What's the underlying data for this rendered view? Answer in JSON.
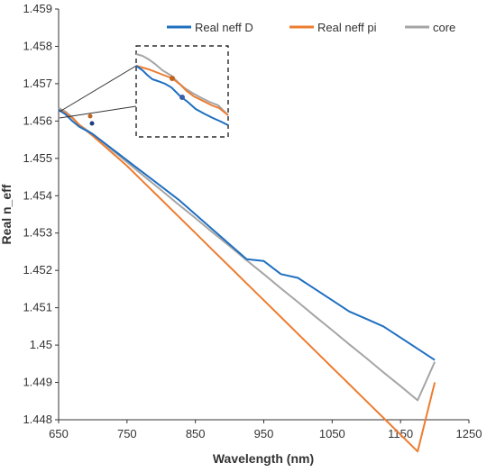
{
  "chart_data": {
    "type": "line",
    "xlabel": "Wavelength (nm)",
    "ylabel": "Real n_eff",
    "xlim": [
      650,
      1250
    ],
    "ylim": [
      1.448,
      1.459
    ],
    "x_ticks": [
      "650",
      "750",
      "850",
      "950",
      "1050",
      "1150",
      "1250"
    ],
    "y_ticks": [
      "1.448",
      "1.449",
      "1.45",
      "1.451",
      "1.452",
      "1.453",
      "1.454",
      "1.455",
      "1.456",
      "1.457",
      "1.458",
      "1.459"
    ],
    "grid": false,
    "legend_position": "top-right",
    "series": [
      {
        "name": "Real neff D",
        "color": "#1f6fc0",
        "x": [
          650,
          660,
          670,
          680,
          700,
          725,
          750,
          775,
          800,
          825,
          850,
          875,
          900,
          925,
          950,
          975,
          1000,
          1025,
          1050,
          1075,
          1100,
          1125,
          1150,
          1175,
          1200
        ],
        "y": [
          1.4563,
          1.45618,
          1.456,
          1.45585,
          1.45565,
          1.4553,
          1.45495,
          1.4546,
          1.45425,
          1.4539,
          1.4535,
          1.4531,
          1.4527,
          1.4523,
          1.45225,
          1.4519,
          1.4518,
          1.4515,
          1.4512,
          1.4509,
          1.4507,
          1.4505,
          1.4502,
          1.4499,
          1.4496
        ]
      },
      {
        "name": "Real neff pi",
        "color": "#ed7d31",
        "x": [
          650,
          660,
          670,
          680,
          700,
          725,
          750,
          775,
          800,
          825,
          850,
          875,
          900,
          925,
          950,
          975,
          1000,
          1025,
          1050,
          1075,
          1100,
          1125,
          1150,
          1175,
          1200
        ],
        "y": [
          1.4563,
          1.45622,
          1.45608,
          1.4559,
          1.4556,
          1.4552,
          1.4548,
          1.45435,
          1.4539,
          1.45345,
          1.453,
          1.45255,
          1.4521,
          1.45165,
          1.4512,
          1.45075,
          1.4503,
          1.44985,
          1.4494,
          1.44895,
          1.4485,
          1.44805,
          1.4476,
          1.44715,
          1.449
        ]
      },
      {
        "name": "core",
        "color": "#a5a5a5",
        "x": [
          650,
          660,
          670,
          680,
          700,
          725,
          750,
          775,
          800,
          825,
          850,
          875,
          900,
          925,
          950,
          975,
          1000,
          1025,
          1050,
          1075,
          1100,
          1125,
          1150,
          1175,
          1200
        ],
        "y": [
          1.45635,
          1.45625,
          1.4561,
          1.4559,
          1.45565,
          1.45527,
          1.4549,
          1.45452,
          1.45415,
          1.45377,
          1.4534,
          1.45302,
          1.45265,
          1.45227,
          1.4519,
          1.45152,
          1.45115,
          1.45077,
          1.4504,
          1.45002,
          1.44965,
          1.44927,
          1.4489,
          1.44852,
          1.44955
        ]
      }
    ]
  }
}
